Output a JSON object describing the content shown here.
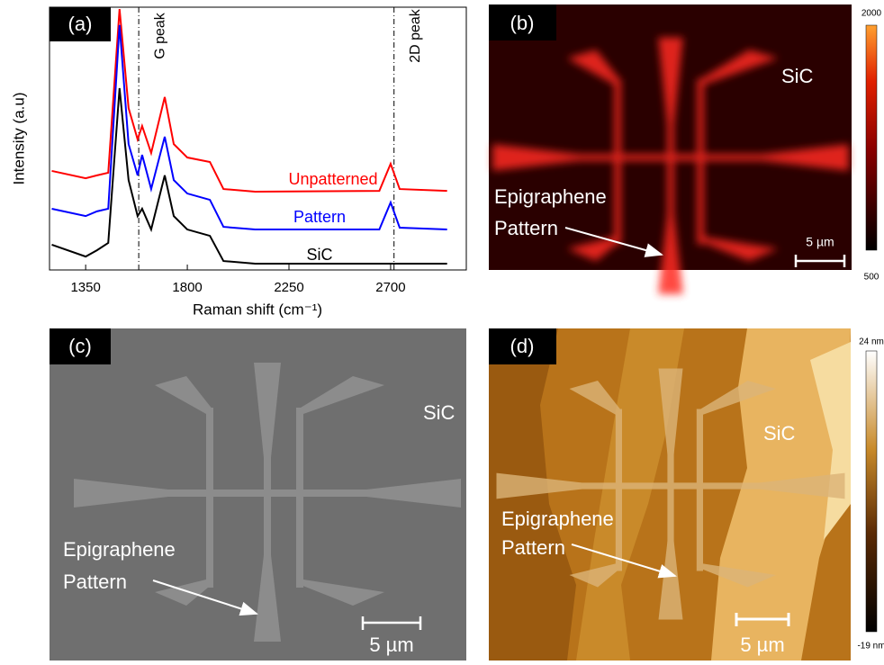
{
  "chart_data": {
    "type": "line",
    "panel_label": "(a)",
    "xlabel": "Raman shift (cm⁻¹)",
    "ylabel": "Intensity (a.u)",
    "x": [
      1200,
      1350,
      1400,
      1450,
      1500,
      1540,
      1580,
      1600,
      1640,
      1700,
      1740,
      1800,
      1900,
      1960,
      2100,
      2650,
      2700,
      2740,
      2950
    ],
    "series": [
      {
        "name": "Unpatterned",
        "color": "#ff0000",
        "values": [
          37.7,
          34.9,
          36.0,
          37.0,
          99.3,
          61.6,
          49.7,
          54.8,
          44.5,
          65.8,
          47.9,
          42.8,
          41.1,
          30.8,
          29.8,
          30.1,
          40.4,
          30.8,
          30.1
        ]
      },
      {
        "name": "Pattern",
        "color": "#0000ff",
        "values": [
          23.3,
          20.5,
          22.3,
          23.3,
          93.2,
          47.9,
          36.0,
          43.8,
          30.8,
          50.7,
          34.2,
          29.1,
          26.7,
          16.4,
          15.4,
          15.4,
          25.7,
          16.1,
          15.4
        ]
      },
      {
        "name": "SiC",
        "color": "#000000",
        "values": [
          9.6,
          5.1,
          7.5,
          10.3,
          69.2,
          34.2,
          20.5,
          23.3,
          15.4,
          36.0,
          20.5,
          15.4,
          13.0,
          3.4,
          2.4,
          2.4,
          2.4,
          2.4,
          2.4
        ]
      }
    ],
    "xlim": [
      1190,
      3035
    ],
    "ylim": [
      0,
      100
    ],
    "xticks": [
      1350,
      1800,
      2250,
      2700
    ],
    "reference_lines": [
      {
        "x": 1585,
        "label": "G peak"
      },
      {
        "x": 2715,
        "label": "2D peak"
      }
    ]
  },
  "images": [
    {
      "panel_label": "(b)",
      "region_label": "SiC",
      "pattern_label": [
        "Epigraphene",
        "Pattern"
      ],
      "scale_bar": "5 µm",
      "colorbar": [
        "2000",
        "500"
      ]
    },
    {
      "panel_label": "(c)",
      "region_label": "SiC",
      "pattern_label": [
        "Epigraphene",
        "Pattern"
      ],
      "scale_bar": "5 µm"
    },
    {
      "panel_label": "(d)",
      "region_label": "SiC",
      "pattern_label": [
        "Epigraphene",
        "Pattern"
      ],
      "scale_bar": "5 µm",
      "colorbar": [
        "24 nm",
        "-19 nm"
      ]
    }
  ]
}
